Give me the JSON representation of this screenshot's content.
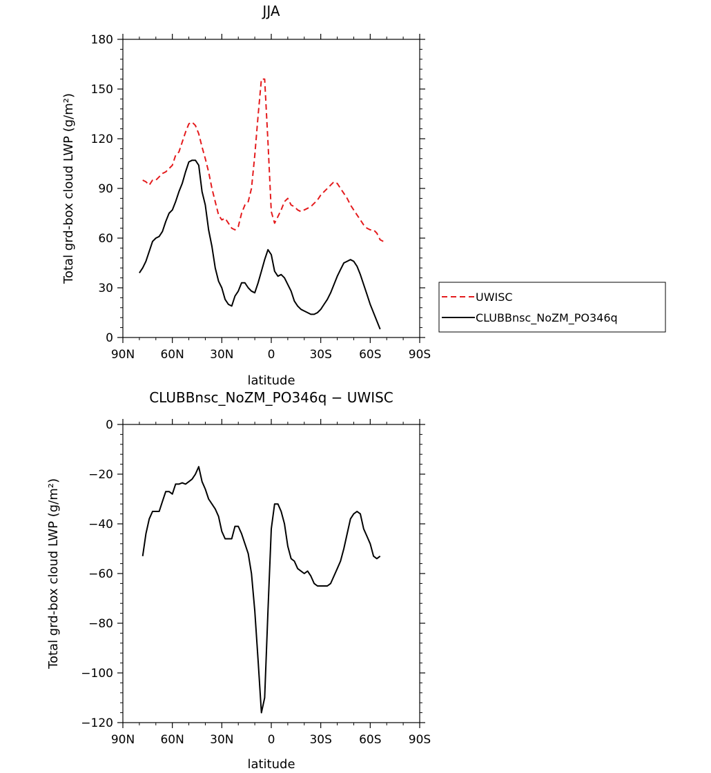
{
  "chart_data": [
    {
      "type": "line",
      "title": "JJA",
      "xlabel": "latitude",
      "ylabel": "Total grd-box cloud LWP (g/m²)",
      "xlim": [
        -90,
        90
      ],
      "ylim": [
        0,
        180
      ],
      "xticks": [
        -90,
        -60,
        -30,
        0,
        30,
        60,
        90
      ],
      "xtick_labels": [
        "90N",
        "60N",
        "30N",
        "0",
        "30S",
        "60S",
        "90S"
      ],
      "yticks": [
        0,
        30,
        60,
        90,
        120,
        150,
        180
      ],
      "ytick_labels": [
        "0",
        "30",
        "60",
        "90",
        "120",
        "150",
        "180"
      ],
      "legend_position": "right",
      "series": [
        {
          "name": "UWISC",
          "color": "#e41a1c",
          "dash": "dashed",
          "x": [
            -78,
            -76,
            -74,
            -72,
            -70,
            -68,
            -66,
            -64,
            -62,
            -60,
            -58,
            -56,
            -54,
            -52,
            -50,
            -48,
            -46,
            -44,
            -42,
            -40,
            -38,
            -36,
            -34,
            -32,
            -30,
            -28,
            -26,
            -24,
            -22,
            -20,
            -18,
            -16,
            -14,
            -12,
            -10,
            -8,
            -6,
            -4,
            -2,
            0,
            2,
            4,
            6,
            8,
            10,
            12,
            14,
            16,
            18,
            20,
            22,
            24,
            26,
            28,
            30,
            32,
            34,
            36,
            38,
            40,
            42,
            44,
            46,
            48,
            50,
            52,
            54,
            56,
            58,
            60,
            62,
            64,
            66,
            68
          ],
          "y": [
            95,
            94,
            92,
            95,
            95,
            97,
            99,
            100,
            102,
            104,
            110,
            112,
            118,
            124,
            129,
            130,
            128,
            123,
            115,
            108,
            100,
            90,
            82,
            74,
            71,
            72,
            69,
            66,
            65,
            67,
            75,
            80,
            82,
            90,
            110,
            134,
            156,
            156,
            118,
            76,
            69,
            73,
            77,
            82,
            84,
            80,
            79,
            77,
            76,
            77,
            78,
            79,
            81,
            83,
            86,
            88,
            90,
            92,
            94,
            93,
            90,
            87,
            84,
            80,
            77,
            74,
            71,
            68,
            66,
            65,
            65,
            63,
            59,
            58
          ]
        },
        {
          "name": "CLUBBnsc_NoZM_PO346q",
          "color": "#000000",
          "dash": "solid",
          "x": [
            -80,
            -78,
            -76,
            -74,
            -72,
            -70,
            -68,
            -66,
            -64,
            -62,
            -60,
            -58,
            -56,
            -54,
            -52,
            -50,
            -48,
            -46,
            -44,
            -42,
            -40,
            -38,
            -36,
            -34,
            -32,
            -30,
            -28,
            -26,
            -24,
            -22,
            -20,
            -18,
            -16,
            -14,
            -12,
            -10,
            -8,
            -6,
            -4,
            -2,
            0,
            2,
            4,
            6,
            8,
            10,
            12,
            14,
            16,
            18,
            20,
            22,
            24,
            26,
            28,
            30,
            32,
            34,
            36,
            38,
            40,
            42,
            44,
            46,
            48,
            50,
            52,
            54,
            56,
            58,
            60,
            62,
            64,
            66
          ],
          "y": [
            39,
            42,
            46,
            52,
            58,
            60,
            61,
            64,
            70,
            75,
            77,
            82,
            88,
            93,
            100,
            106,
            107,
            107,
            104,
            88,
            80,
            65,
            55,
            42,
            34,
            30,
            23,
            20,
            19,
            25,
            28,
            33,
            33,
            30,
            28,
            27,
            33,
            40,
            47,
            53,
            50,
            40,
            37,
            38,
            36,
            32,
            28,
            22,
            19,
            17,
            16,
            15,
            14,
            14,
            15,
            17,
            20,
            23,
            27,
            32,
            37,
            41,
            45,
            46,
            47,
            46,
            43,
            38,
            32,
            26,
            20,
            15,
            10,
            5
          ]
        }
      ]
    },
    {
      "type": "line",
      "title": "CLUBBnsc_NoZM_PO346q − UWISC",
      "xlabel": "latitude",
      "ylabel": "Total grd-box cloud LWP (g/m²)",
      "xlim": [
        -90,
        90
      ],
      "ylim": [
        -120,
        0
      ],
      "xticks": [
        -90,
        -60,
        -30,
        0,
        30,
        60,
        90
      ],
      "xtick_labels": [
        "90N",
        "60N",
        "30N",
        "0",
        "30S",
        "60S",
        "90S"
      ],
      "yticks": [
        -120,
        -100,
        -80,
        -60,
        -40,
        -20,
        0
      ],
      "ytick_labels": [
        "−120",
        "−100",
        "−80",
        "−60",
        "−40",
        "−20",
        "0"
      ],
      "series": [
        {
          "color": "#000000",
          "dash": "solid",
          "x": [
            -78,
            -76,
            -74,
            -72,
            -70,
            -68,
            -66,
            -64,
            -62,
            -60,
            -58,
            -56,
            -54,
            -52,
            -50,
            -48,
            -46,
            -44,
            -42,
            -40,
            -38,
            -36,
            -34,
            -32,
            -30,
            -28,
            -26,
            -24,
            -22,
            -20,
            -18,
            -16,
            -14,
            -12,
            -10,
            -8,
            -6,
            -4,
            -2,
            0,
            2,
            4,
            6,
            8,
            10,
            12,
            14,
            16,
            18,
            20,
            22,
            24,
            26,
            28,
            30,
            32,
            34,
            36,
            38,
            40,
            42,
            44,
            46,
            48,
            50,
            52,
            54,
            56,
            58,
            60,
            62,
            64,
            66
          ],
          "y": [
            -53,
            -44,
            -38,
            -35,
            -35,
            -35,
            -31,
            -27,
            -27,
            -28,
            -24,
            -24,
            -23.5,
            -24,
            -23,
            -22,
            -20,
            -17,
            -23,
            -26,
            -30,
            -32,
            -34,
            -37,
            -43,
            -46,
            -46,
            -46,
            -41,
            -41,
            -44,
            -48,
            -52,
            -60,
            -75,
            -95,
            -116,
            -110,
            -75,
            -42,
            -32,
            -32,
            -35,
            -40,
            -49,
            -54,
            -55,
            -58,
            -59,
            -60,
            -59,
            -61,
            -64,
            -65,
            -65,
            -65,
            -65,
            -64,
            -61,
            -58,
            -55,
            -50,
            -44,
            -38,
            -36,
            -35,
            -36,
            -42,
            -45,
            -48,
            -53,
            -54,
            -53
          ]
        }
      ]
    }
  ]
}
